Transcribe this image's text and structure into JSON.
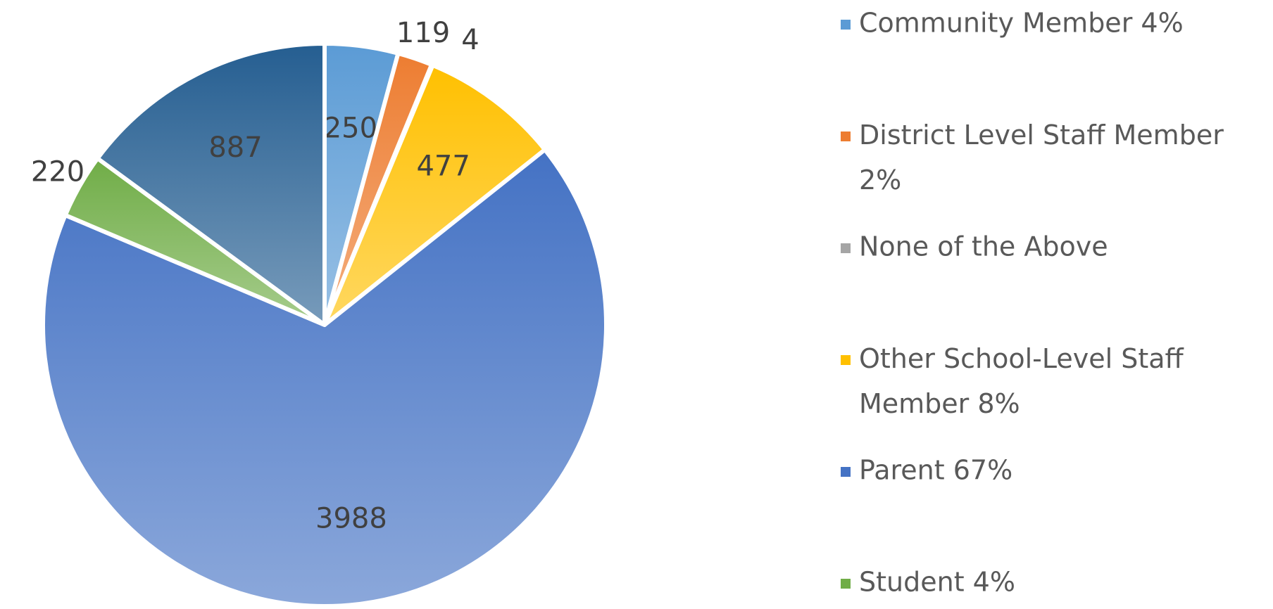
{
  "chart_data": {
    "type": "pie",
    "categories": [
      "Community Member 4%",
      "District Level Staff Member 2%",
      "None of the Above",
      "Other School-Level Staff Member 8%",
      "Parent 67%",
      "Student 4%",
      null
    ],
    "values": [
      250,
      119,
      4,
      477,
      3988,
      220,
      887
    ],
    "colors": [
      "#5b9bd5",
      "#ed7d31",
      "#a5a5a5",
      "#ffc000",
      "#4472c4",
      "#70ad47",
      "#255e91"
    ],
    "legend": "right"
  }
}
